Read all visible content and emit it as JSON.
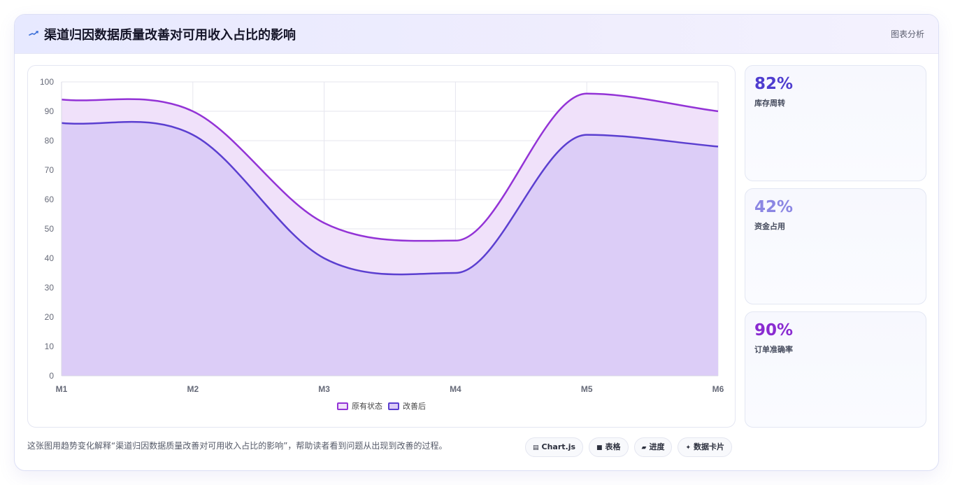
{
  "header": {
    "title": "渠道归因数据质量改善对可用收入占比的影响",
    "action_label": "图表分析",
    "icon": "trend-line-icon"
  },
  "chart_data": {
    "type": "area",
    "categories": [
      "M1",
      "M2",
      "M3",
      "M4",
      "M5",
      "M6"
    ],
    "ylim": [
      0,
      100
    ],
    "yticks": [
      0,
      10,
      20,
      30,
      40,
      50,
      60,
      70,
      80,
      90,
      100
    ],
    "grid": true,
    "legend_position": "bottom",
    "series": [
      {
        "name": "原有状态",
        "values": [
          94,
          90,
          52,
          46,
          96,
          90
        ],
        "color": "#9333d6",
        "fill": "#f0e1fa"
      },
      {
        "name": "改善后",
        "values": [
          86,
          82,
          40,
          35,
          82,
          78
        ],
        "color": "#5b3fd0",
        "fill": "#dccdf7"
      }
    ]
  },
  "stats": [
    {
      "value": "82%",
      "label": "库存周转",
      "color": "#4f3dcf"
    },
    {
      "value": "42%",
      "label": "资金占用",
      "color": "#8b86e3"
    },
    {
      "value": "90%",
      "label": "订单准确率",
      "color": "#8a2bd1"
    }
  ],
  "description": "这张图用趋势变化解释“渠道归因数据质量改善对可用收入占比的影响”，帮助读者看到问题从出现到改善的过程。",
  "chips": [
    {
      "icon": "▤",
      "label": "Chart.js"
    },
    {
      "icon": "■",
      "label": "表格"
    },
    {
      "icon": "▰",
      "label": "进度"
    },
    {
      "icon": "✦",
      "label": "数据卡片"
    }
  ]
}
